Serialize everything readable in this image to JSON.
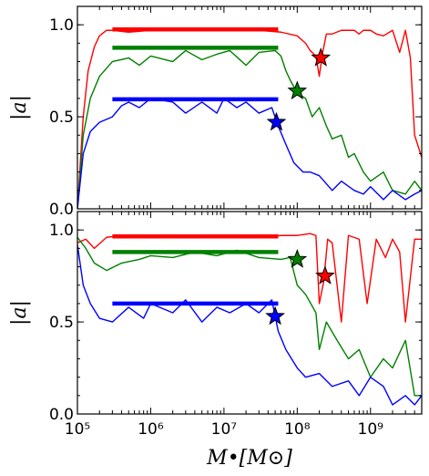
{
  "chart_data": [
    {
      "type": "line",
      "panel": "top",
      "ylabel": "|a|",
      "ylim": [
        0.0,
        1.1
      ],
      "xscale": "log",
      "xlim": [
        100000,
        5000000000
      ],
      "yticks": [
        "0.0",
        "0.5",
        "1.0"
      ],
      "series": [
        {
          "color": "#ff0000",
          "x": [
            100000,
            120000,
            140000,
            170000,
            200000,
            250000,
            300000,
            500000,
            1000000,
            3000000,
            10000000,
            30000000,
            60000000,
            100000000,
            130000000,
            150000000,
            180000000,
            200000000,
            220000000,
            250000000,
            300000000,
            400000000,
            500000000,
            600000000,
            700000000,
            800000000,
            1000000000,
            1200000000,
            1500000000,
            2000000000,
            2500000000,
            3000000000,
            3500000000,
            4000000000,
            5000000000
          ],
          "y": [
            0.0,
            0.5,
            0.75,
            0.88,
            0.94,
            0.97,
            0.97,
            0.96,
            0.97,
            0.97,
            0.97,
            0.97,
            0.96,
            0.94,
            0.9,
            0.86,
            0.83,
            0.72,
            0.84,
            0.95,
            0.95,
            0.97,
            0.97,
            0.97,
            0.95,
            0.97,
            0.97,
            0.95,
            0.94,
            0.97,
            0.85,
            0.97,
            0.82,
            0.4,
            0.28
          ]
        },
        {
          "color": "#008000",
          "x": [
            100000,
            120000,
            150000,
            200000,
            300000,
            500000,
            700000,
            1000000,
            2000000,
            3000000,
            5000000,
            8000000,
            12000000,
            20000000,
            30000000,
            50000000,
            60000000,
            70000000,
            80000000,
            100000000,
            130000000,
            160000000,
            200000000,
            250000000,
            300000000,
            400000000,
            500000000,
            600000000,
            800000000,
            1000000000,
            1500000000,
            2000000000,
            3000000000,
            4000000000,
            5000000000
          ],
          "y": [
            0.0,
            0.4,
            0.6,
            0.72,
            0.8,
            0.82,
            0.78,
            0.83,
            0.8,
            0.86,
            0.81,
            0.84,
            0.86,
            0.78,
            0.85,
            0.86,
            0.83,
            0.75,
            0.7,
            0.63,
            0.6,
            0.5,
            0.55,
            0.45,
            0.38,
            0.4,
            0.28,
            0.3,
            0.2,
            0.15,
            0.2,
            0.1,
            0.08,
            0.15,
            0.1
          ]
        },
        {
          "color": "#0000ff",
          "x": [
            100000,
            120000,
            150000,
            200000,
            300000,
            400000,
            500000,
            700000,
            1000000,
            2000000,
            3000000,
            5000000,
            8000000,
            10000000,
            15000000,
            20000000,
            30000000,
            45000000,
            55000000,
            70000000,
            90000000,
            120000000,
            150000000,
            200000000,
            300000000,
            400000000,
            600000000,
            800000000,
            1000000000,
            1500000000,
            2000000000,
            3000000000,
            4000000000,
            5000000000
          ],
          "y": [
            0.0,
            0.3,
            0.42,
            0.47,
            0.5,
            0.56,
            0.58,
            0.55,
            0.6,
            0.58,
            0.52,
            0.58,
            0.52,
            0.6,
            0.55,
            0.58,
            0.52,
            0.55,
            0.45,
            0.35,
            0.25,
            0.2,
            0.2,
            0.18,
            0.1,
            0.15,
            0.1,
            0.08,
            0.12,
            0.05,
            0.1,
            0.05,
            0.08,
            0.1
          ]
        }
      ],
      "hlines": [
        {
          "color": "#ff0000",
          "y": 0.975,
          "x0": 300000,
          "x1": 55000000
        },
        {
          "color": "#008000",
          "y": 0.875,
          "x0": 300000,
          "x1": 55000000
        },
        {
          "color": "#0000ff",
          "y": 0.595,
          "x0": 300000,
          "x1": 55000000
        }
      ],
      "markers": [
        {
          "color": "#ff0000",
          "x": 210000000,
          "y": 0.82
        },
        {
          "color": "#008000",
          "x": 100000000,
          "y": 0.64
        },
        {
          "color": "#0000ff",
          "x": 52000000,
          "y": 0.47
        }
      ]
    },
    {
      "type": "line",
      "panel": "bottom",
      "ylabel": "|a|",
      "ylim": [
        0.0,
        1.1
      ],
      "xscale": "log",
      "xlim": [
        100000,
        5000000000
      ],
      "xlabel": "M•[M⊙]",
      "xticks": [
        "10⁵",
        "10⁶",
        "10⁷",
        "10⁸",
        "10⁹"
      ],
      "yticks": [
        "0.0",
        "0.5",
        "1.0"
      ],
      "series": [
        {
          "color": "#ff0000",
          "x": [
            100000,
            130000,
            170000,
            250000,
            400000,
            700000,
            1000000,
            3000000,
            10000000,
            30000000,
            60000000,
            100000000,
            150000000,
            180000000,
            200000000,
            230000000,
            260000000,
            300000000,
            400000000,
            500000000,
            700000000,
            900000000,
            1200000000,
            1600000000,
            2000000000,
            2500000000,
            3000000000,
            4000000000,
            5000000000
          ],
          "y": [
            0.93,
            0.95,
            0.9,
            0.96,
            0.97,
            0.97,
            0.96,
            0.97,
            0.97,
            0.96,
            0.97,
            0.97,
            0.98,
            0.97,
            0.6,
            0.72,
            0.95,
            0.93,
            0.5,
            0.97,
            0.95,
            0.6,
            0.95,
            0.85,
            0.95,
            0.88,
            0.5,
            0.95,
            0.95
          ]
        },
        {
          "color": "#008000",
          "x": [
            100000,
            130000,
            170000,
            250000,
            400000,
            700000,
            1000000,
            2000000,
            4000000,
            8000000,
            15000000,
            30000000,
            60000000,
            80000000,
            100000000,
            130000000,
            180000000,
            200000000,
            250000000,
            350000000,
            500000000,
            700000000,
            1000000000,
            1500000000,
            2000000000,
            3000000000,
            4000000000,
            5000000000
          ],
          "y": [
            0.96,
            0.9,
            0.82,
            0.78,
            0.82,
            0.84,
            0.86,
            0.85,
            0.88,
            0.86,
            0.89,
            0.85,
            0.84,
            0.85,
            0.7,
            0.65,
            0.55,
            0.35,
            0.5,
            0.4,
            0.3,
            0.35,
            0.2,
            0.3,
            0.25,
            0.4,
            0.1,
            0.1
          ]
        },
        {
          "color": "#0000ff",
          "x": [
            100000,
            120000,
            150000,
            200000,
            300000,
            500000,
            800000,
            1000000,
            2000000,
            3000000,
            5000000,
            8000000,
            12000000,
            20000000,
            30000000,
            45000000,
            55000000,
            70000000,
            100000000,
            130000000,
            200000000,
            300000000,
            500000000,
            700000000,
            1000000000,
            1500000000,
            2000000000,
            3000000000,
            4000000000,
            5000000000
          ],
          "y": [
            0.92,
            0.7,
            0.6,
            0.52,
            0.5,
            0.58,
            0.52,
            0.6,
            0.55,
            0.62,
            0.5,
            0.58,
            0.55,
            0.6,
            0.55,
            0.62,
            0.45,
            0.35,
            0.25,
            0.2,
            0.22,
            0.15,
            0.18,
            0.1,
            0.2,
            0.15,
            0.05,
            0.1,
            0.05,
            0.1
          ]
        }
      ],
      "hlines": [
        {
          "color": "#ff0000",
          "y": 0.965,
          "x0": 300000,
          "x1": 55000000
        },
        {
          "color": "#008000",
          "y": 0.88,
          "x0": 300000,
          "x1": 55000000
        },
        {
          "color": "#0000ff",
          "y": 0.6,
          "x0": 300000,
          "x1": 55000000
        }
      ],
      "markers": [
        {
          "color": "#ff0000",
          "x": 240000000,
          "y": 0.75
        },
        {
          "color": "#008000",
          "x": 100000000,
          "y": 0.84
        },
        {
          "color": "#0000ff",
          "x": 50000000,
          "y": 0.53
        }
      ]
    }
  ]
}
